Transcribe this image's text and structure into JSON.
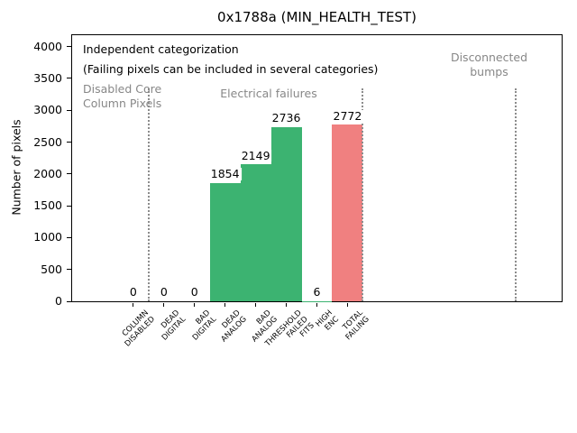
{
  "chart_data": {
    "type": "bar",
    "title": "0x1788a (MIN_HEALTH_TEST)",
    "ylabel": "Number of pixels",
    "xlabel": "",
    "ylim": [
      0,
      4180
    ],
    "yticks": [
      0,
      500,
      1000,
      1500,
      2000,
      2500,
      3000,
      3500,
      4000
    ],
    "xlim": [
      -2,
      14
    ],
    "grid": false,
    "legend": null,
    "categories": [
      "COLUMN\nDISABLED",
      "DEAD\nDIGITAL",
      "BAD\nDIGITAL",
      "DEAD\nANALOG",
      "BAD\nANALOG",
      "THRESHOLD\nFAILED\nFITS",
      "HIGH\nENC",
      "TOTAL\nFAILING"
    ],
    "values": [
      0,
      0,
      0,
      1854,
      2149,
      2736,
      6,
      2772
    ],
    "value_labels": [
      "0",
      "0",
      "0",
      "1854",
      "2149",
      "2736",
      "6",
      "2772"
    ],
    "bar_colors": [
      "#3cb371",
      "#3cb371",
      "#3cb371",
      "#3cb371",
      "#3cb371",
      "#3cb371",
      "#3cb371",
      "#f08080"
    ],
    "section_separators_x": [
      0.5,
      7.5,
      12.5
    ],
    "annotations": [
      {
        "id": "note-line-1",
        "text": "Independent categorization",
        "color": "#000000"
      },
      {
        "id": "note-line-2",
        "text": "(Failing pixels can be included in several categories)",
        "color": "#000000"
      },
      {
        "id": "section-disabled-core-column",
        "text": "Disabled Core\nColumn Pixels",
        "color": "#878787"
      },
      {
        "id": "section-electrical-failures",
        "text": "Electrical failures",
        "color": "#878787"
      },
      {
        "id": "section-disconnected-bumps",
        "text": "Disconnected\nbumps",
        "color": "#878787"
      }
    ],
    "colors": {
      "bar_green": "#3cb371",
      "bar_total_red": "#f08080",
      "section_text_gray": "#878787",
      "separator_gray": "#8c8c8c",
      "axis_black": "#000000",
      "background": "#ffffff"
    }
  }
}
